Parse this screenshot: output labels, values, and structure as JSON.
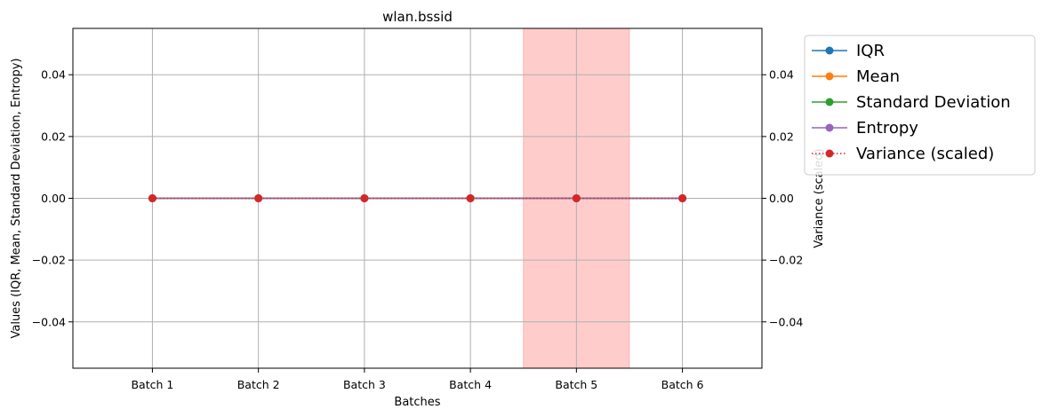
{
  "chart_data": {
    "type": "line",
    "title": "wlan.bssid",
    "xlabel": "Batches",
    "ylabel": "Values (IQR, Mean, Standard Deviation, Entropy)",
    "ylabel_right": "Variance (scaled)",
    "ylabel_right_color": "#d62728",
    "categories": [
      "Batch 1",
      "Batch 2",
      "Batch 3",
      "Batch 4",
      "Batch 5",
      "Batch 6"
    ],
    "ylim": [
      -0.055,
      0.055
    ],
    "yticks": [
      -0.04,
      -0.02,
      0.0,
      0.02,
      0.04
    ],
    "ytick_labels": [
      "−0.04",
      "−0.02",
      "0.00",
      "0.02",
      "0.04"
    ],
    "y2ticks": [
      -0.04,
      -0.02,
      0.0,
      0.02,
      0.04
    ],
    "y2tick_labels": [
      "−0.04",
      "−0.02",
      "0.00",
      "0.02",
      "0.04"
    ],
    "grid": true,
    "legend_position": "outside-top-right",
    "highlight": {
      "from": 4.5,
      "to": 5.5,
      "color": "#ff9999"
    },
    "series": [
      {
        "name": "IQR",
        "values": [
          0,
          0,
          0,
          0,
          0,
          0
        ],
        "color": "#1f77b4",
        "style": "solid",
        "axis": "left"
      },
      {
        "name": "Mean",
        "values": [
          0,
          0,
          0,
          0,
          0,
          0
        ],
        "color": "#ff7f0e",
        "style": "solid",
        "axis": "left"
      },
      {
        "name": "Standard Deviation",
        "values": [
          0,
          0,
          0,
          0,
          0,
          0
        ],
        "color": "#2ca02c",
        "style": "solid",
        "axis": "left"
      },
      {
        "name": "Entropy",
        "values": [
          0,
          0,
          0,
          0,
          0,
          0
        ],
        "color": "#9467bd",
        "style": "solid",
        "axis": "left"
      },
      {
        "name": "Variance (scaled)",
        "values": [
          0,
          0,
          0,
          0,
          0,
          0
        ],
        "color": "#d62728",
        "style": "dotted",
        "axis": "right"
      }
    ]
  }
}
